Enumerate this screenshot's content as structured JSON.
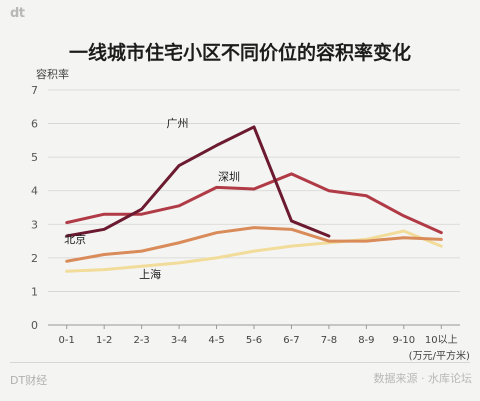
{
  "logo": "dt",
  "footer": {
    "left": "DT财经",
    "right": "数据来源 · 水库论坛"
  },
  "chart_data": {
    "type": "line",
    "title": "一线城市住宅小区不同价位的容积率变化",
    "ylabel": "容积率",
    "xlabel": "(万元/平方米)",
    "categories": [
      "0-1",
      "1-2",
      "2-3",
      "3-4",
      "4-5",
      "5-6",
      "6-7",
      "7-8",
      "8-9",
      "9-10",
      "10以上"
    ],
    "ylim": [
      0,
      7
    ],
    "yticks": [
      "0",
      "1",
      "2",
      "3",
      "4",
      "5",
      "6",
      "7"
    ],
    "grid": true,
    "series": [
      {
        "name": "广州",
        "color": "#6b1a30",
        "values": [
          2.65,
          2.85,
          3.45,
          4.75,
          5.35,
          5.9,
          3.1,
          2.65,
          null,
          null,
          null
        ]
      },
      {
        "name": "深圳",
        "color": "#b03a45",
        "values": [
          3.05,
          3.3,
          3.3,
          3.55,
          4.1,
          4.05,
          4.5,
          4.0,
          3.85,
          3.25,
          2.75
        ]
      },
      {
        "name": "北京",
        "color": "#d98b5a",
        "values": [
          1.9,
          2.1,
          2.2,
          2.45,
          2.75,
          2.9,
          2.85,
          2.5,
          2.5,
          2.6,
          2.55
        ]
      },
      {
        "name": "上海",
        "color": "#f2dc9a",
        "values": [
          1.6,
          1.65,
          1.75,
          1.85,
          2.0,
          2.2,
          2.35,
          2.45,
          2.55,
          2.8,
          2.35
        ]
      }
    ],
    "annotations": [
      {
        "series": "广州",
        "text": "广州",
        "near": "above-left of 4-5 peak"
      },
      {
        "series": "深圳",
        "text": "深圳",
        "near": "above 5-6"
      },
      {
        "series": "北京",
        "text": "北京",
        "near": "above 1-2"
      },
      {
        "series": "上海",
        "text": "上海",
        "near": "below 3-4"
      }
    ]
  }
}
